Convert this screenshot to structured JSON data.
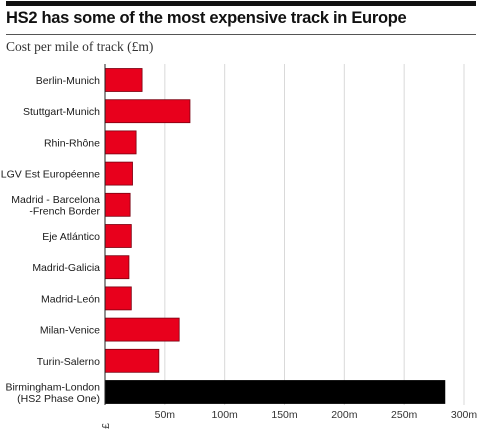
{
  "chart_data": {
    "type": "bar",
    "orientation": "horizontal",
    "title": "HS2 has some of the most expensive track in Europe",
    "subtitle": "Cost per mile of track (£m)",
    "categories": [
      [
        "Berlin-Munich"
      ],
      [
        "Stuttgart-Munich"
      ],
      [
        "Rhin-Rhône"
      ],
      [
        "LGV Est Européenne"
      ],
      [
        "Madrid - Barcelona",
        "-French Border"
      ],
      [
        "Eje Atlántico"
      ],
      [
        "Madrid-Galicia"
      ],
      [
        "Madrid-León"
      ],
      [
        "Milan-Venice"
      ],
      [
        "Turin-Salerno"
      ],
      [
        "Birmingham-London",
        "(HS2 Phase One)"
      ]
    ],
    "values": [
      31,
      71,
      26,
      23,
      21,
      22,
      20,
      22,
      62,
      45,
      284
    ],
    "colors": [
      "#e8001c",
      "#e8001c",
      "#e8001c",
      "#e8001c",
      "#e8001c",
      "#e8001c",
      "#e8001c",
      "#e8001c",
      "#e8001c",
      "#e8001c",
      "#000000"
    ],
    "xlim": [
      0,
      300
    ],
    "x_ticks": [
      {
        "value": 0,
        "label": "£"
      },
      {
        "value": 50,
        "label": "50m"
      },
      {
        "value": 100,
        "label": "100m"
      },
      {
        "value": 150,
        "label": "150m"
      },
      {
        "value": 200,
        "label": "200m"
      },
      {
        "value": 250,
        "label": "250m"
      },
      {
        "value": 300,
        "label": "300m"
      }
    ],
    "grid": true
  }
}
